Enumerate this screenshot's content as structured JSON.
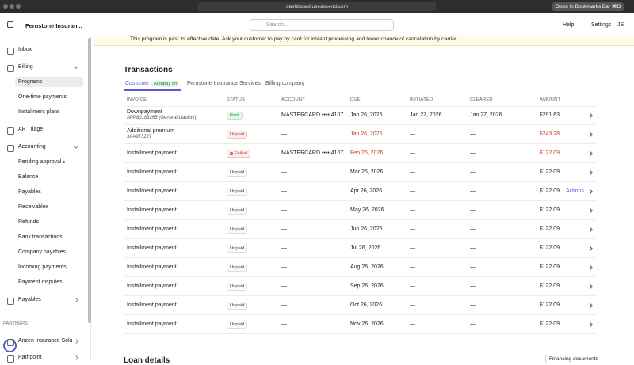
{
  "browser": {
    "url": "dashboard.useascend.com",
    "bookmark": "Open in Bookmarks Bar",
    "shortcut": "⌘O"
  },
  "header": {
    "org": "Fernstone Insuran...",
    "search": "Search...",
    "help": "Help",
    "settings": "Settings",
    "user": "JS"
  },
  "sidebar": {
    "nav": [
      {
        "label": "Inbox"
      },
      {
        "label": "Billing",
        "children": [
          "Programs",
          "One-time payments",
          "Installment plans"
        ]
      },
      {
        "label": "AR Triage"
      },
      {
        "label": "Accounting",
        "children": [
          "Pending approval",
          "Balance",
          "Payables",
          "Receivables",
          "Refunds",
          "Bank transactions",
          "Company payables",
          "Incoming payments",
          "Payment disputes"
        ]
      },
      {
        "label": "Payables"
      }
    ],
    "partners_label": "PARTNERS",
    "partners": [
      "Anzen Insurance Solu",
      "Pathpoint"
    ]
  },
  "banner": "This program is past its effective date. Ask your customer to pay by card for instant processing and lower chance of cancelation by carrier.",
  "transactions": {
    "title": "Transactions",
    "tabs": [
      "Customer",
      "Fernstone Insurance Services",
      "Billing company"
    ],
    "tab_badge": "Autopay on",
    "columns": [
      "INVOICE",
      "STATUS",
      "ACCOUNT",
      "DUE",
      "INITIATED",
      "CLEARED",
      "AMOUNT"
    ],
    "rows": [
      {
        "invoice": "Downpayment",
        "sub": "APP80183265 (General Liability)",
        "status": "Paid",
        "account": "MASTERCARD •••• 4107",
        "due": "Jan 26, 2026",
        "initiated": "Jan 27, 2026",
        "cleared": "Jan 27, 2026",
        "amount": "$291.63"
      },
      {
        "invoice": "Additional premium",
        "sub": "3AA973227",
        "status": "Unpaid",
        "account": "—",
        "due": "Jan 26, 2026",
        "initiated": "—",
        "cleared": "—",
        "amount": "$243.28"
      },
      {
        "invoice": "Installment payment",
        "status": "Failed",
        "account": "MASTERCARD •••• 4107",
        "due": "Feb 26, 2026",
        "initiated": "—",
        "cleared": "—",
        "amount": "$122.09"
      },
      {
        "invoice": "Installment payment",
        "status": "Unpaid",
        "account": "—",
        "due": "Mar 26, 2026",
        "initiated": "—",
        "cleared": "—",
        "amount": "$122.09"
      },
      {
        "invoice": "Installment payment",
        "status": "Unpaid",
        "account": "—",
        "due": "Apr 26, 2026",
        "initiated": "—",
        "cleared": "—",
        "amount": "$122.09",
        "action": "Actions"
      },
      {
        "invoice": "Installment payment",
        "status": "Unpaid",
        "account": "—",
        "due": "May 26, 2026",
        "initiated": "—",
        "cleared": "—",
        "amount": "$122.09"
      },
      {
        "invoice": "Installment payment",
        "status": "Unpaid",
        "account": "—",
        "due": "Jun 26, 2026",
        "initiated": "—",
        "cleared": "—",
        "amount": "$122.09"
      },
      {
        "invoice": "Installment payment",
        "status": "Unpaid",
        "account": "—",
        "due": "Jul 26, 2026",
        "initiated": "—",
        "cleared": "—",
        "amount": "$122.09"
      },
      {
        "invoice": "Installment payment",
        "status": "Unpaid",
        "account": "—",
        "due": "Aug 26, 2026",
        "initiated": "—",
        "cleared": "—",
        "amount": "$122.09"
      },
      {
        "invoice": "Installment payment",
        "status": "Unpaid",
        "account": "—",
        "due": "Sep 26, 2026",
        "initiated": "—",
        "cleared": "—",
        "amount": "$122.09"
      },
      {
        "invoice": "Installment payment",
        "status": "Unpaid",
        "account": "—",
        "due": "Oct 26, 2026",
        "initiated": "—",
        "cleared": "—",
        "amount": "$122.09"
      },
      {
        "invoice": "Installment payment",
        "status": "Unpaid",
        "account": "—",
        "due": "Nov 26, 2026",
        "initiated": "—",
        "cleared": "—",
        "amount": "$122.09"
      }
    ]
  },
  "loan": {
    "title": "Loan details",
    "button": "Financing documents"
  }
}
